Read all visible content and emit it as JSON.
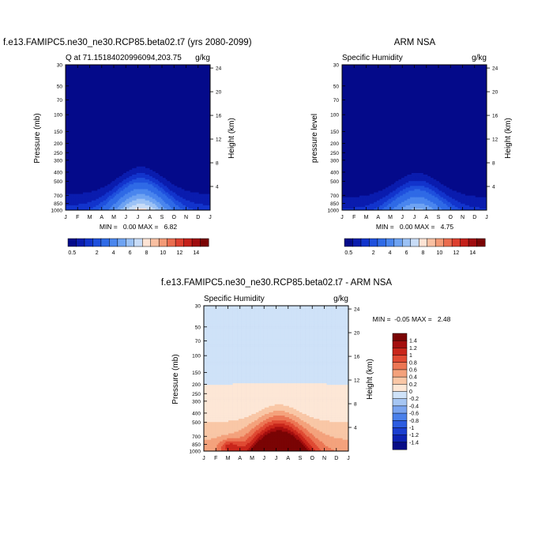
{
  "colors": {
    "model_palette": [
      "#040a8a",
      "#0a1cae",
      "#1234cc",
      "#1f50dd",
      "#2f6ae6",
      "#4a86ee",
      "#6ea3f2",
      "#9cc2f5",
      "#c8dcf7",
      "#fde3d4",
      "#f9c0a2",
      "#f39a76",
      "#ea6c4e",
      "#dd402f",
      "#c4201a",
      "#a00c0f",
      "#7a0404"
    ],
    "diff_palette": [
      "#080c86",
      "#0c22b2",
      "#1a3ed0",
      "#2c5ce0",
      "#4a80ea",
      "#7aa4ef",
      "#a6c6f3",
      "#cfe2f8",
      "#fde7d6",
      "#f9c7a6",
      "#f4a27c",
      "#ec7654",
      "#e04a33",
      "#c9261b",
      "#a40e0e",
      "#7a0404"
    ]
  },
  "chart_data": [
    {
      "type": "heatmap",
      "title": "f.e13.FAMIPC5.ne30_ne30.RCP85.beta02.t7 (yrs 2080-2099)",
      "left_subtitle": "Q at 71.15184020996094,203.75",
      "right_subtitle": "g/kg",
      "ylabel": "Pressure (mb)",
      "y2label": "Height (km)",
      "x": [
        "J",
        "F",
        "M",
        "A",
        "M",
        "J",
        "J",
        "A",
        "S",
        "O",
        "N",
        "D",
        "J"
      ],
      "pressure_ticks": [
        "30",
        "50",
        "70",
        "100",
        "150",
        "200",
        "250",
        "300",
        "400",
        "500",
        "700",
        "850",
        "1000"
      ],
      "height_ticks": [
        "24",
        "20",
        "16",
        "12",
        "8",
        "4"
      ],
      "min_max_text": "MIN =   0.00 MAX =   6.82",
      "min": 0.0,
      "max": 6.82,
      "colorbar_labels": [
        "0.5",
        "2",
        "4",
        "6",
        "8",
        "10",
        "12",
        "14"
      ],
      "legend_placement": "bottom"
    },
    {
      "type": "heatmap",
      "title": "ARM NSA",
      "left_subtitle": "Specific Humidity",
      "right_subtitle": "g/kg",
      "ylabel": "pressure level",
      "y2label": "Height (km)",
      "x": [
        "J",
        "F",
        "M",
        "A",
        "M",
        "J",
        "J",
        "A",
        "S",
        "O",
        "N",
        "D",
        "J"
      ],
      "pressure_ticks": [
        "30",
        "50",
        "70",
        "100",
        "150",
        "200",
        "250",
        "300",
        "400",
        "500",
        "700",
        "850",
        "1000"
      ],
      "height_ticks": [
        "24",
        "20",
        "16",
        "12",
        "8",
        "4"
      ],
      "min_max_text": "MIN =   0.00 MAX =   4.75",
      "min": 0.0,
      "max": 4.75,
      "colorbar_labels": [
        "0.5",
        "2",
        "4",
        "6",
        "8",
        "10",
        "12",
        "14"
      ],
      "legend_placement": "bottom"
    },
    {
      "type": "heatmap",
      "title": "f.e13.FAMIPC5.ne30_ne30.RCP85.beta02.t7 - ARM NSA",
      "left_subtitle": "Specific Humidity",
      "right_subtitle": "g/kg",
      "ylabel": "Pressure (mb)",
      "y2label": "Height (km)",
      "x": [
        "J",
        "F",
        "M",
        "A",
        "M",
        "J",
        "J",
        "A",
        "S",
        "O",
        "N",
        "D",
        "J"
      ],
      "pressure_ticks": [
        "30",
        "50",
        "70",
        "100",
        "150",
        "200",
        "250",
        "300",
        "400",
        "500",
        "700",
        "850",
        "1000"
      ],
      "height_ticks": [
        "24",
        "20",
        "16",
        "12",
        "8",
        "4"
      ],
      "min_max_text": "MIN =  -0.05 MAX =   2.48",
      "min": -0.05,
      "max": 2.48,
      "colorbar_labels": [
        "1.4",
        "1.2",
        "1",
        "0.8",
        "0.6",
        "0.4",
        "0.2",
        "0",
        "-0.2",
        "-0.4",
        "-0.6",
        "-0.8",
        "-1",
        "-1.2",
        "-1.4"
      ],
      "legend_placement": "right"
    }
  ]
}
